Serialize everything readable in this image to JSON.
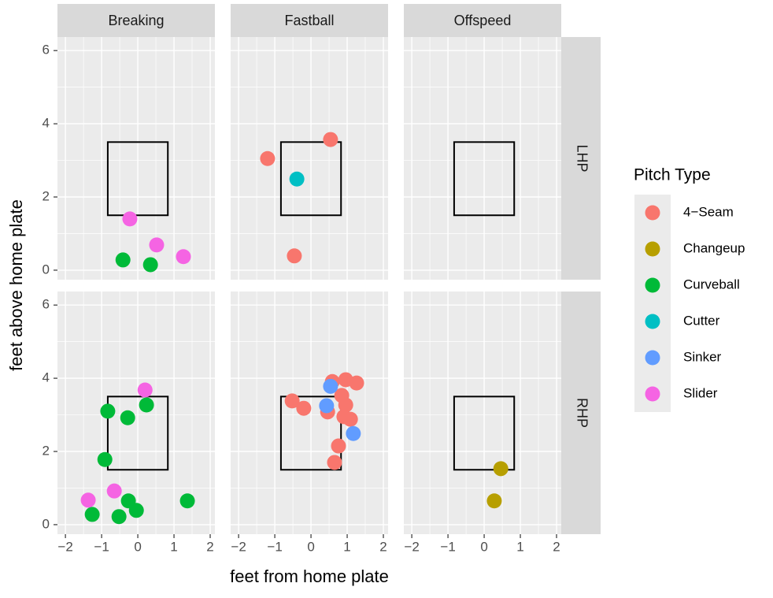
{
  "chart_data": {
    "type": "scatter",
    "x_label": "feet from home plate",
    "y_label": "feet above home plate",
    "legend_title": "Pitch Type",
    "legend": "right",
    "grid": true,
    "columns": [
      "Breaking",
      "Fastball",
      "Offspeed"
    ],
    "rows": [
      "LHP",
      "RHP"
    ],
    "xlim": [
      -2.22,
      2.13
    ],
    "ylim": [
      -0.26,
      6.37
    ],
    "xticks": [
      {
        "value": -2,
        "label": "−2"
      },
      {
        "value": -1,
        "label": "−1"
      },
      0,
      1,
      2
    ],
    "yticks": [
      0,
      2,
      4,
      6
    ],
    "xminor": [
      -1.5,
      -0.5,
      0.5,
      1.5
    ],
    "yminor": [
      1,
      3,
      5
    ],
    "strike_zone": {
      "x": [
        -0.83,
        0.83
      ],
      "y": [
        1.5,
        3.5
      ]
    },
    "series": [
      {
        "name": "4−Seam",
        "color": "#F8766D",
        "x": [
          -1.2,
          0.54,
          -0.46,
          -0.52,
          -0.2,
          0.59,
          0.96,
          1.26,
          0.85,
          0.96,
          0.46,
          0.91,
          1.09,
          0.76,
          0.65
        ],
        "y": [
          3.05,
          3.57,
          0.39,
          3.38,
          3.18,
          3.91,
          3.96,
          3.87,
          3.53,
          3.27,
          3.08,
          2.95,
          2.88,
          2.15,
          1.7
        ],
        "column": [
          "Fastball",
          "Fastball",
          "Fastball",
          "Fastball",
          "Fastball",
          "Fastball",
          "Fastball",
          "Fastball",
          "Fastball",
          "Fastball",
          "Fastball",
          "Fastball",
          "Fastball",
          "Fastball",
          "Fastball"
        ],
        "row": [
          "LHP",
          "LHP",
          "LHP",
          "RHP",
          "RHP",
          "RHP",
          "RHP",
          "RHP",
          "RHP",
          "RHP",
          "RHP",
          "RHP",
          "RHP",
          "RHP",
          "RHP"
        ]
      },
      {
        "name": "Changeup",
        "color": "#B79F00",
        "x": [
          0.46,
          0.28
        ],
        "y": [
          1.53,
          0.65
        ],
        "column": [
          "Offspeed",
          "Offspeed"
        ],
        "row": [
          "RHP",
          "RHP"
        ]
      },
      {
        "name": "Curveball",
        "color": "#00BA38",
        "x": [
          -0.41,
          0.35,
          -0.83,
          0.24,
          -0.28,
          -0.91,
          -0.26,
          1.37,
          -1.26,
          -0.52,
          -0.04
        ],
        "y": [
          0.28,
          0.15,
          3.1,
          3.27,
          2.92,
          1.78,
          0.65,
          0.65,
          0.28,
          0.22,
          0.39
        ],
        "column": [
          "Breaking",
          "Breaking",
          "Breaking",
          "Breaking",
          "Breaking",
          "Breaking",
          "Breaking",
          "Breaking",
          "Breaking",
          "Breaking",
          "Breaking"
        ],
        "row": [
          "LHP",
          "LHP",
          "RHP",
          "RHP",
          "RHP",
          "RHP",
          "RHP",
          "RHP",
          "RHP",
          "RHP",
          "RHP"
        ]
      },
      {
        "name": "Cutter",
        "color": "#00BFC4",
        "x": [
          -0.39
        ],
        "y": [
          2.49
        ],
        "column": [
          "Fastball"
        ],
        "row": [
          "LHP"
        ]
      },
      {
        "name": "Sinker",
        "color": "#619CFF",
        "x": [
          0.54,
          0.43,
          1.17
        ],
        "y": [
          3.78,
          3.25,
          2.49
        ],
        "column": [
          "Fastball",
          "Fastball",
          "Fastball"
        ],
        "row": [
          "RHP",
          "RHP",
          "RHP"
        ]
      },
      {
        "name": "Slider",
        "color": "#F564E3",
        "x": [
          -0.22,
          0.52,
          1.26,
          0.2,
          -0.65,
          -1.37
        ],
        "y": [
          1.4,
          0.69,
          0.37,
          3.68,
          0.92,
          0.67
        ],
        "column": [
          "Breaking",
          "Breaking",
          "Breaking",
          "Breaking",
          "Breaking",
          "Breaking"
        ],
        "row": [
          "LHP",
          "LHP",
          "LHP",
          "RHP",
          "RHP",
          "RHP"
        ]
      }
    ]
  }
}
